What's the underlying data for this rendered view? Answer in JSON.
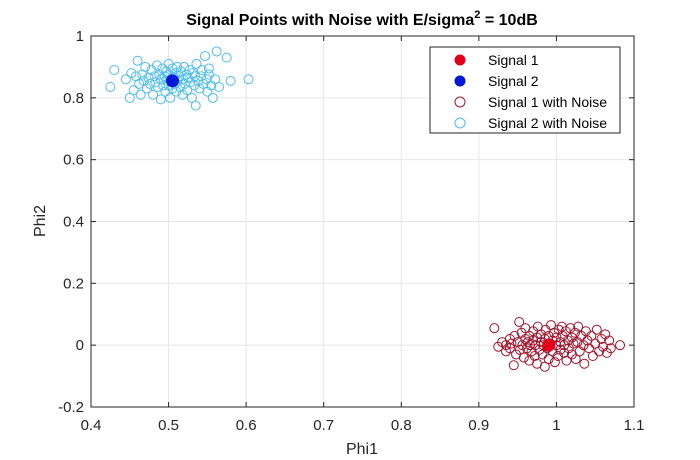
{
  "colors": {
    "signal1": "#e3001b",
    "signal2": "#0018d8",
    "signal1_noise": "#a2142f",
    "signal2_noise": "#4dbeee",
    "grid": "#e6e6e6",
    "axis": "#262626"
  },
  "chart_data": {
    "type": "scatter",
    "title_main": "Signal Points with Noise with E/sigma",
    "title_sup": "2",
    "title_tail": " = 10dB",
    "xlabel": "Phi1",
    "ylabel": "Phi2",
    "xlim": [
      0.4,
      1.1
    ],
    "ylim": [
      -0.2,
      1.0
    ],
    "xticks": [
      "0.4",
      "0.5",
      "0.6",
      "0.7",
      "0.8",
      "0.9",
      "1",
      "1.1"
    ],
    "yticks": [
      "-0.2",
      "0",
      "0.2",
      "0.4",
      "0.6",
      "0.8",
      "1"
    ],
    "grid": true,
    "legend_location": "top-right",
    "series": [
      {
        "name": "Signal 1",
        "marker": "filled-circle",
        "color_key": "signal1",
        "points": [
          [
            0.99,
            0.0
          ]
        ]
      },
      {
        "name": "Signal 2",
        "marker": "filled-circle",
        "color_key": "signal2",
        "points": [
          [
            0.505,
            0.855
          ]
        ]
      },
      {
        "name": "Signal 1 with Noise",
        "marker": "open-circle",
        "color_key": "signal1_noise",
        "points": [
          [
            0.92,
            0.055
          ],
          [
            0.925,
            -0.005
          ],
          [
            0.93,
            0.01
          ],
          [
            0.935,
            -0.02
          ],
          [
            0.935,
            0.0
          ],
          [
            0.94,
            0.02
          ],
          [
            0.94,
            -0.01
          ],
          [
            0.942,
            0.005
          ],
          [
            0.945,
            -0.065
          ],
          [
            0.946,
            0.03
          ],
          [
            0.948,
            -0.03
          ],
          [
            0.95,
            0.01
          ],
          [
            0.952,
            0.075
          ],
          [
            0.953,
            -0.015
          ],
          [
            0.955,
            0.04
          ],
          [
            0.956,
            0.0
          ],
          [
            0.958,
            -0.04
          ],
          [
            0.96,
            0.02
          ],
          [
            0.96,
            0.055
          ],
          [
            0.962,
            -0.01
          ],
          [
            0.963,
            0.01
          ],
          [
            0.965,
            -0.05
          ],
          [
            0.965,
            0.03
          ],
          [
            0.966,
            0.0
          ],
          [
            0.968,
            -0.02
          ],
          [
            0.97,
            0.045
          ],
          [
            0.97,
            0.015
          ],
          [
            0.972,
            -0.035
          ],
          [
            0.973,
            0.0
          ],
          [
            0.975,
            0.025
          ],
          [
            0.975,
            -0.06
          ],
          [
            0.976,
            0.06
          ],
          [
            0.978,
            -0.015
          ],
          [
            0.98,
            0.01
          ],
          [
            0.98,
            0.035
          ],
          [
            0.982,
            -0.03
          ],
          [
            0.983,
            0.0
          ],
          [
            0.985,
            -0.07
          ],
          [
            0.985,
            0.02
          ],
          [
            0.986,
            0.05
          ],
          [
            0.988,
            -0.01
          ],
          [
            0.99,
            0.03
          ],
          [
            0.99,
            -0.045
          ],
          [
            0.992,
            0.005
          ],
          [
            0.993,
            0.065
          ],
          [
            0.995,
            -0.02
          ],
          [
            0.995,
            0.015
          ],
          [
            0.997,
            0.04
          ],
          [
            0.998,
            -0.055
          ],
          [
            1.0,
            0.0
          ],
          [
            1.0,
            0.025
          ],
          [
            1.002,
            -0.035
          ],
          [
            1.003,
            0.05
          ],
          [
            1.005,
            0.01
          ],
          [
            1.005,
            -0.015
          ],
          [
            1.007,
            0.06
          ],
          [
            1.008,
            0.03
          ],
          [
            1.01,
            -0.025
          ],
          [
            1.01,
            0.0
          ],
          [
            1.012,
            0.045
          ],
          [
            1.013,
            -0.05
          ],
          [
            1.015,
            0.015
          ],
          [
            1.016,
            -0.01
          ],
          [
            1.018,
            0.055
          ],
          [
            1.02,
            0.025
          ],
          [
            1.02,
            -0.03
          ],
          [
            1.022,
            0.005
          ],
          [
            1.024,
            0.04
          ],
          [
            1.025,
            -0.045
          ],
          [
            1.027,
            0.01
          ],
          [
            1.028,
            0.06
          ],
          [
            1.03,
            -0.02
          ],
          [
            1.032,
            0.03
          ],
          [
            1.035,
            0.0
          ],
          [
            1.036,
            -0.06
          ],
          [
            1.038,
            0.045
          ],
          [
            1.04,
            0.015
          ],
          [
            1.042,
            -0.01
          ],
          [
            1.045,
            0.03
          ],
          [
            1.047,
            -0.035
          ],
          [
            1.05,
            0.005
          ],
          [
            1.052,
            0.05
          ],
          [
            1.055,
            -0.02
          ],
          [
            1.058,
            0.02
          ],
          [
            1.06,
            -0.005
          ],
          [
            1.063,
            0.035
          ],
          [
            1.065,
            -0.025
          ],
          [
            1.068,
            0.015
          ],
          [
            1.07,
            -0.01
          ],
          [
            1.082,
            0.0
          ]
        ]
      },
      {
        "name": "Signal 2 with Noise",
        "marker": "open-circle",
        "color_key": "signal2_noise",
        "points": [
          [
            0.425,
            0.835
          ],
          [
            0.43,
            0.89
          ],
          [
            0.445,
            0.86
          ],
          [
            0.45,
            0.8
          ],
          [
            0.452,
            0.88
          ],
          [
            0.455,
            0.825
          ],
          [
            0.458,
            0.87
          ],
          [
            0.46,
            0.92
          ],
          [
            0.462,
            0.845
          ],
          [
            0.464,
            0.81
          ],
          [
            0.466,
            0.875
          ],
          [
            0.468,
            0.855
          ],
          [
            0.47,
            0.9
          ],
          [
            0.472,
            0.83
          ],
          [
            0.474,
            0.865
          ],
          [
            0.476,
            0.845
          ],
          [
            0.478,
            0.89
          ],
          [
            0.48,
            0.81
          ],
          [
            0.482,
            0.87
          ],
          [
            0.483,
            0.85
          ],
          [
            0.485,
            0.905
          ],
          [
            0.486,
            0.835
          ],
          [
            0.488,
            0.875
          ],
          [
            0.49,
            0.86
          ],
          [
            0.49,
            0.795
          ],
          [
            0.492,
            0.895
          ],
          [
            0.493,
            0.84
          ],
          [
            0.495,
            0.87
          ],
          [
            0.496,
            0.82
          ],
          [
            0.497,
            0.885
          ],
          [
            0.498,
            0.855
          ],
          [
            0.5,
            0.91
          ],
          [
            0.5,
            0.84
          ],
          [
            0.501,
            0.875
          ],
          [
            0.502,
            0.8
          ],
          [
            0.503,
            0.86
          ],
          [
            0.505,
            0.895
          ],
          [
            0.505,
            0.83
          ],
          [
            0.506,
            0.865
          ],
          [
            0.508,
            0.845
          ],
          [
            0.509,
            0.88
          ],
          [
            0.51,
            0.82
          ],
          [
            0.511,
            0.9
          ],
          [
            0.512,
            0.855
          ],
          [
            0.514,
            0.87
          ],
          [
            0.515,
            0.835
          ],
          [
            0.516,
            0.885
          ],
          [
            0.518,
            0.81
          ],
          [
            0.519,
            0.86
          ],
          [
            0.52,
            0.9
          ],
          [
            0.521,
            0.845
          ],
          [
            0.523,
            0.875
          ],
          [
            0.524,
            0.825
          ],
          [
            0.525,
            0.865
          ],
          [
            0.527,
            0.89
          ],
          [
            0.528,
            0.85
          ],
          [
            0.53,
            0.8
          ],
          [
            0.531,
            0.88
          ],
          [
            0.533,
            0.84
          ],
          [
            0.534,
            0.87
          ],
          [
            0.535,
            0.775
          ],
          [
            0.536,
            0.91
          ],
          [
            0.538,
            0.855
          ],
          [
            0.54,
            0.83
          ],
          [
            0.542,
            0.87
          ],
          [
            0.543,
            0.89
          ],
          [
            0.545,
            0.845
          ],
          [
            0.547,
            0.935
          ],
          [
            0.549,
            0.86
          ],
          [
            0.55,
            0.82
          ],
          [
            0.552,
            0.875
          ],
          [
            0.555,
            0.84
          ],
          [
            0.557,
            0.8
          ],
          [
            0.56,
            0.86
          ],
          [
            0.562,
            0.95
          ],
          [
            0.565,
            0.835
          ],
          [
            0.575,
            0.93
          ],
          [
            0.58,
            0.855
          ],
          [
            0.603,
            0.86
          ],
          [
            0.552,
            0.895
          ]
        ]
      }
    ]
  }
}
